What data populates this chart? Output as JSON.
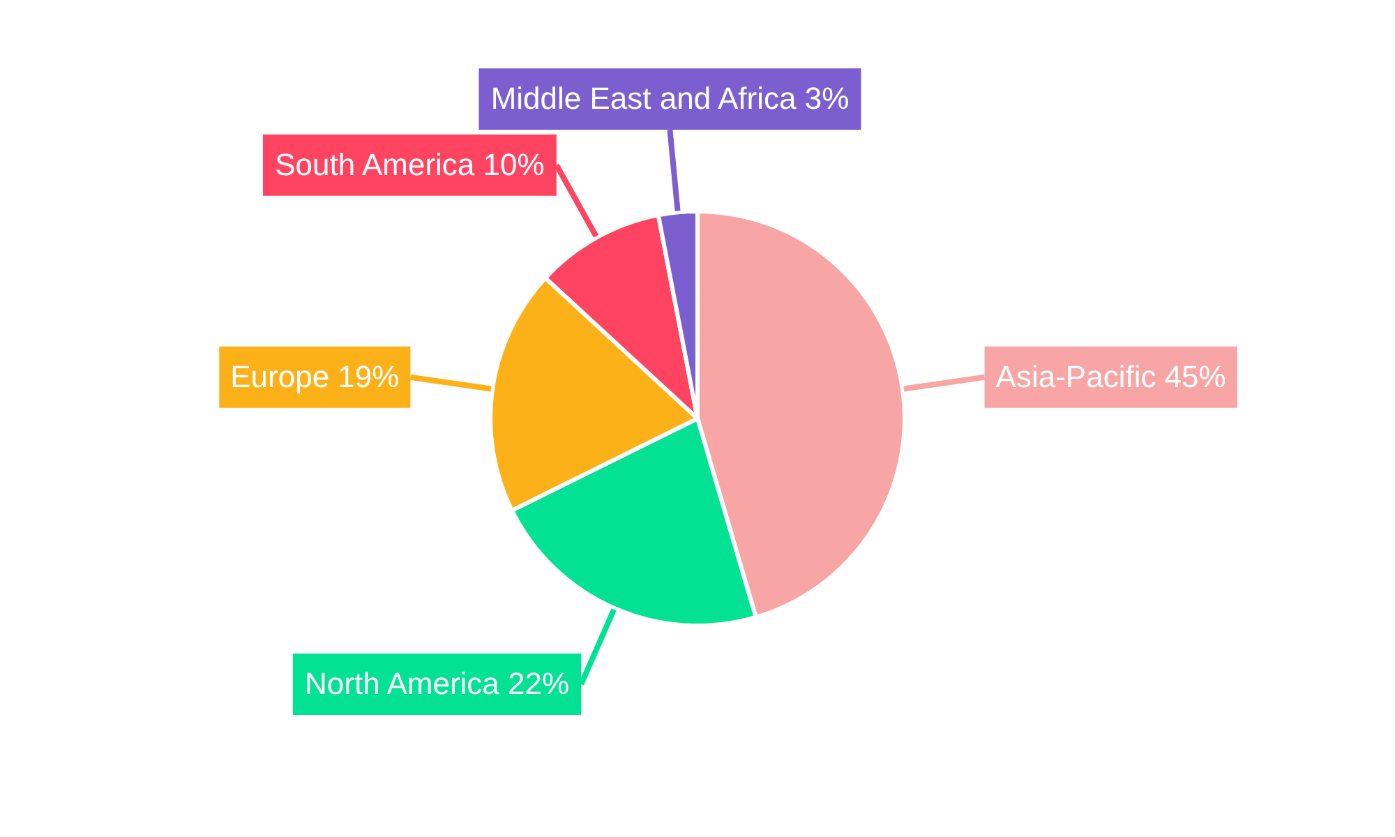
{
  "chart_data": {
    "type": "pie",
    "categories": [
      "Asia-Pacific",
      "North America",
      "Europe",
      "South America",
      "Middle East and Africa"
    ],
    "values": [
      45,
      22,
      19,
      10,
      3
    ],
    "value_labels": [
      "45%",
      "22%",
      "19%",
      "10%",
      "3%"
    ],
    "colors": [
      "#f8a5a5",
      "#02e194",
      "#fdb119",
      "#fe4460",
      "#7b5fcf"
    ],
    "legend": false
  }
}
